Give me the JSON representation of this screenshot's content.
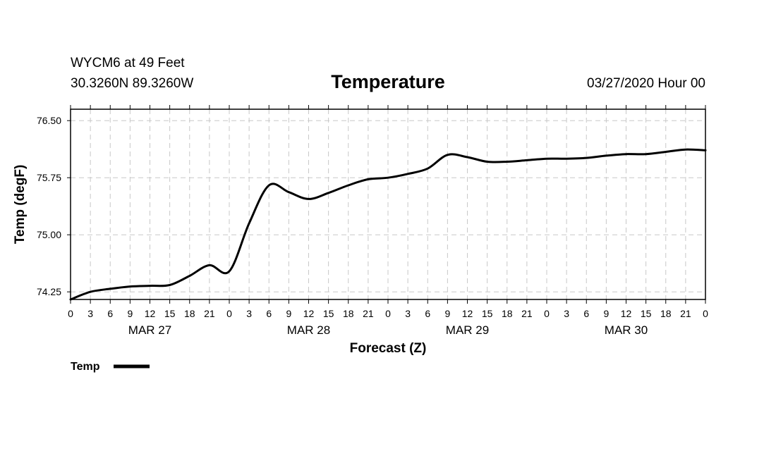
{
  "header": {
    "station": "WYCM6 at 49 Feet",
    "location": "30.3260N 89.3260W",
    "title": "Temperature",
    "run": "03/27/2020 Hour 00"
  },
  "chart_data": {
    "type": "line",
    "title": "Temperature",
    "xlabel": "Forecast (Z)",
    "ylabel": "Temp (degF)",
    "xlim_hours": [
      0,
      96
    ],
    "ylim": [
      74.15,
      76.65
    ],
    "y_ticks": [
      "74.25",
      "75.00",
      "75.75",
      "76.50"
    ],
    "x_tick_labels": [
      "0",
      "3",
      "6",
      "9",
      "12",
      "15",
      "18",
      "21",
      "0",
      "3",
      "6",
      "9",
      "12",
      "15",
      "18",
      "21",
      "0",
      "3",
      "6",
      "9",
      "12",
      "15",
      "18",
      "21",
      "0",
      "3",
      "6",
      "9",
      "12",
      "15",
      "18",
      "21",
      "0"
    ],
    "day_labels": [
      "MAR 27",
      "MAR 28",
      "MAR 29",
      "MAR 30"
    ],
    "grid": true,
    "legend_position": "bottom-left",
    "series": [
      {
        "name": "Temp",
        "color": "#000000",
        "x_hours": [
          0,
          3,
          6,
          9,
          12,
          15,
          18,
          21,
          24,
          27,
          30,
          33,
          36,
          39,
          42,
          45,
          48,
          51,
          54,
          57,
          60,
          63,
          66,
          69,
          72,
          75,
          78,
          81,
          84,
          87,
          90,
          93,
          96
        ],
        "values": [
          74.15,
          74.25,
          74.29,
          74.32,
          74.33,
          74.34,
          74.46,
          74.6,
          74.52,
          75.15,
          75.65,
          75.56,
          75.47,
          75.55,
          75.65,
          75.73,
          75.75,
          75.8,
          75.87,
          76.05,
          76.02,
          75.96,
          75.96,
          75.98,
          76.0,
          76.0,
          76.01,
          76.04,
          76.06,
          76.06,
          76.09,
          76.12,
          76.11
        ]
      }
    ]
  },
  "legend": {
    "label": "Temp"
  }
}
